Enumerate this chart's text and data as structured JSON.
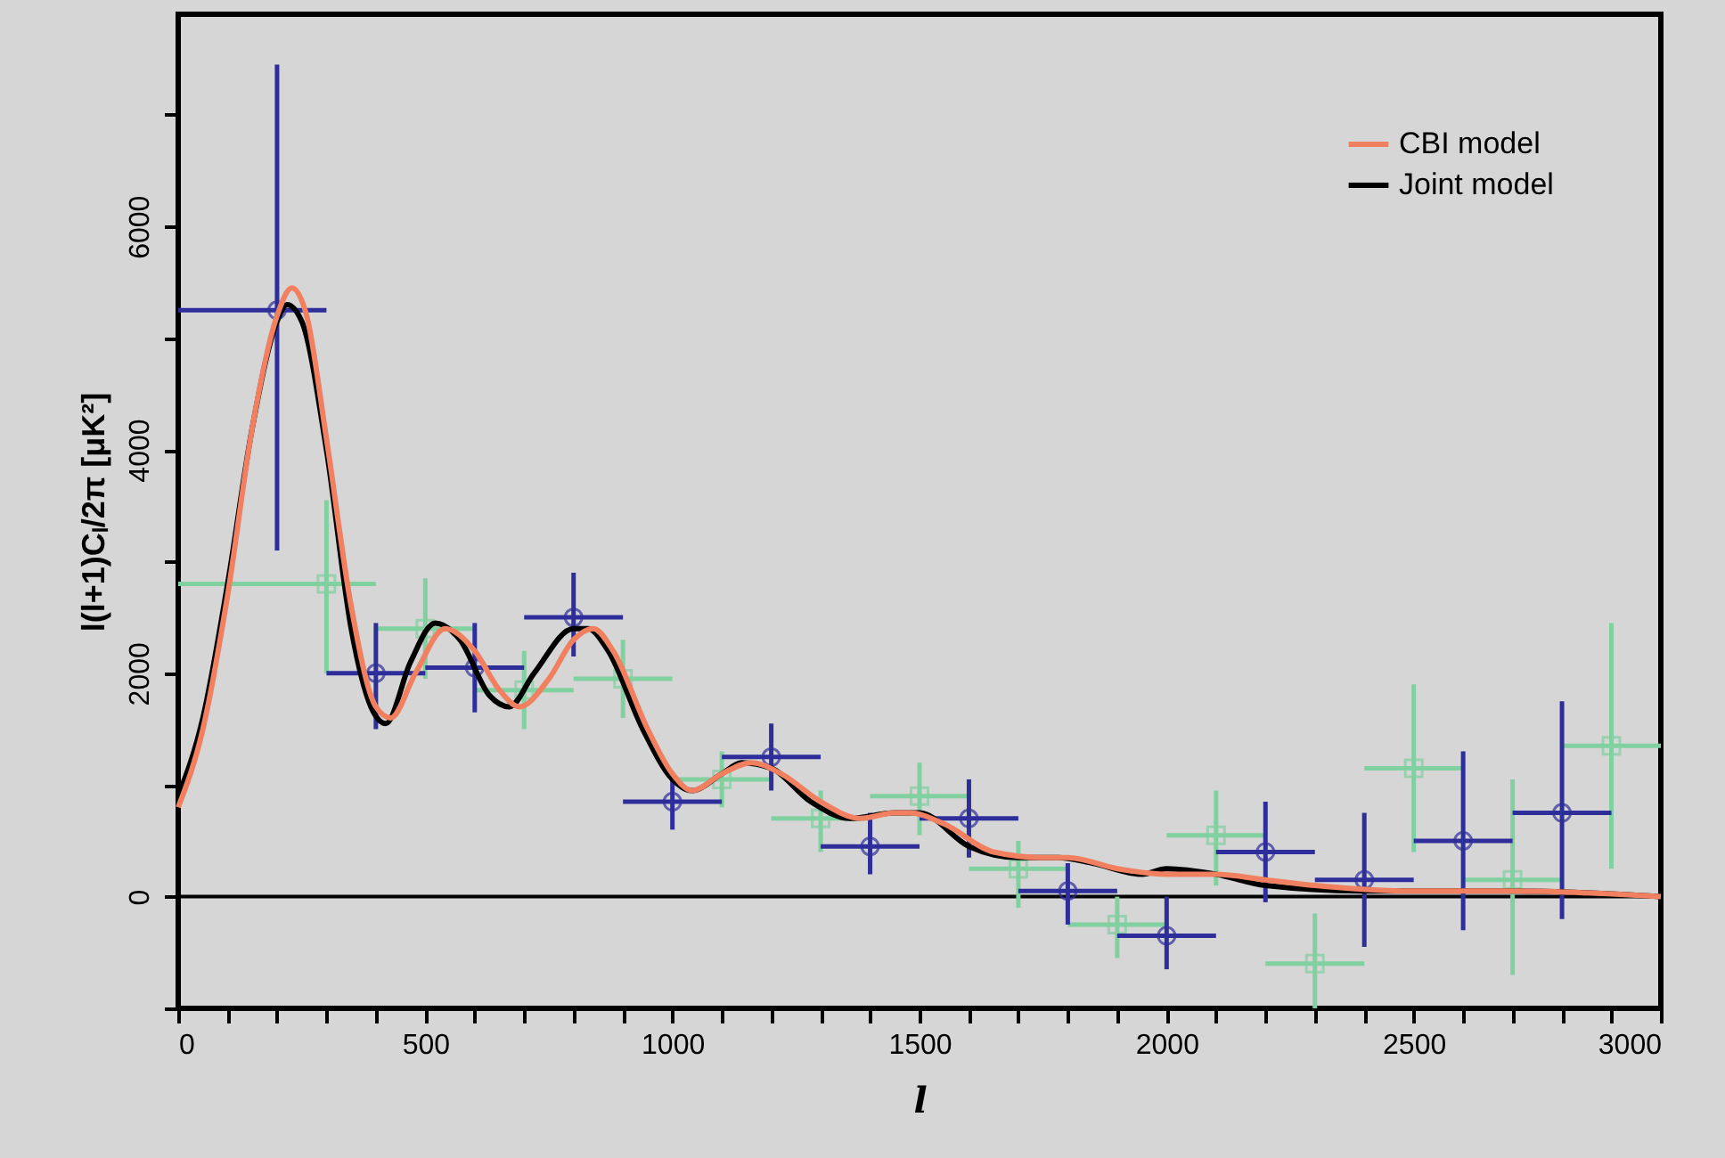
{
  "chart_data": {
    "type": "scatter",
    "xlabel": "l",
    "ylabel": "l(l+1)Cₗ/2π [μK²]",
    "xlim": [
      0,
      3000
    ],
    "ylim": [
      -1000,
      7900
    ],
    "xticks": [
      0,
      {
        "value": 100,
        "label": null
      },
      {
        "value": 200,
        "label": null
      },
      {
        "value": 300,
        "label": null
      },
      {
        "value": 400,
        "label": null
      },
      500,
      {
        "value": 600,
        "label": null
      },
      {
        "value": 700,
        "label": null
      },
      {
        "value": 800,
        "label": null
      },
      {
        "value": 900,
        "label": null
      },
      1000,
      {
        "value": 1100,
        "label": null
      },
      {
        "value": 1200,
        "label": null
      },
      {
        "value": 1300,
        "label": null
      },
      {
        "value": 1400,
        "label": null
      },
      1500,
      {
        "value": 1600,
        "label": null
      },
      {
        "value": 1700,
        "label": null
      },
      {
        "value": 1800,
        "label": null
      },
      {
        "value": 1900,
        "label": null
      },
      2000,
      {
        "value": 2100,
        "label": null
      },
      {
        "value": 2200,
        "label": null
      },
      {
        "value": 2300,
        "label": null
      },
      {
        "value": 2400,
        "label": null
      },
      2500,
      {
        "value": 2600,
        "label": null
      },
      {
        "value": 2700,
        "label": null
      },
      {
        "value": 2800,
        "label": null
      },
      {
        "value": 2900,
        "label": null
      },
      3000
    ],
    "yticks": [
      {
        "value": -1000,
        "label": null
      },
      0,
      {
        "value": 1000,
        "label": null
      },
      2000,
      {
        "value": 3000,
        "label": null
      },
      4000,
      {
        "value": 5000,
        "label": null
      },
      6000,
      {
        "value": 7000,
        "label": null
      }
    ],
    "grid": false,
    "legend": "top right",
    "ref_lines": [
      {
        "axis": "y",
        "value": 0,
        "color": "#000000"
      }
    ],
    "series": [
      {
        "color": "#80d0a0",
        "marker": "square",
        "x": [
          300,
          500,
          700,
          900,
          1100,
          1300,
          1500,
          1700,
          1900,
          2100,
          2300,
          2500,
          2700,
          2900
        ],
        "values": [
          2800,
          2400,
          1850,
          1950,
          1050,
          700,
          900,
          250,
          -250,
          550,
          -600,
          1150,
          150,
          1350
        ],
        "errors": [
          [
            2000,
            3550
          ],
          [
            1950,
            2850
          ],
          [
            1500,
            2200
          ],
          [
            1600,
            2300
          ],
          [
            800,
            1300
          ],
          [
            400,
            950
          ],
          [
            550,
            1200
          ],
          [
            -100,
            500
          ],
          [
            -550,
            0
          ],
          [
            100,
            950
          ],
          [
            -1000,
            -150
          ],
          [
            400,
            1900
          ],
          [
            -700,
            1050
          ],
          [
            250,
            2450
          ]
        ],
        "xerrors": [
          [
            0,
            400
          ],
          [
            400,
            600
          ],
          [
            600,
            800
          ],
          [
            800,
            1000
          ],
          [
            1000,
            1200
          ],
          [
            1200,
            1400
          ],
          [
            1400,
            1600
          ],
          [
            1600,
            1800
          ],
          [
            1800,
            2000
          ],
          [
            2000,
            2200
          ],
          [
            2200,
            2400
          ],
          [
            2400,
            2600
          ],
          [
            2600,
            2800
          ],
          [
            2800,
            3000
          ]
        ]
      },
      {
        "color": "#2e2e9a",
        "marker": "circle",
        "x": [
          200,
          400,
          600,
          800,
          1000,
          1200,
          1400,
          1600,
          1800,
          2000,
          2200,
          2400,
          2600,
          2800
        ],
        "values": [
          5250,
          2000,
          2050,
          2500,
          850,
          1250,
          450,
          700,
          50,
          -350,
          400,
          150,
          500,
          750
        ],
        "errors": [
          [
            3100,
            7450
          ],
          [
            1500,
            2450
          ],
          [
            1650,
            2450
          ],
          [
            2150,
            2900
          ],
          [
            600,
            1100
          ],
          [
            950,
            1550
          ],
          [
            200,
            750
          ],
          [
            350,
            1050
          ],
          [
            -250,
            300
          ],
          [
            -650,
            0
          ],
          [
            -50,
            850
          ],
          [
            -450,
            750
          ],
          [
            -300,
            1300
          ],
          [
            -200,
            1750
          ]
        ],
        "xerrors": [
          [
            0,
            300
          ],
          [
            300,
            500
          ],
          [
            500,
            700
          ],
          [
            700,
            900
          ],
          [
            900,
            1100
          ],
          [
            1100,
            1300
          ],
          [
            1300,
            1500
          ],
          [
            1500,
            1700
          ],
          [
            1700,
            1900
          ],
          [
            1900,
            2100
          ],
          [
            2100,
            2300
          ],
          [
            2300,
            2500
          ],
          [
            2500,
            2700
          ],
          [
            2700,
            2900
          ]
        ]
      },
      {
        "type": "line",
        "name": "CBI model",
        "color": "#f08060",
        "x": [
          0,
          50,
          100,
          150,
          200,
          230,
          260,
          300,
          350,
          400,
          430,
          480,
          540,
          600,
          650,
          690,
          750,
          800,
          840,
          880,
          950,
          1000,
          1040,
          1100,
          1160,
          1220,
          1300,
          1380,
          1450,
          1480,
          1550,
          1650,
          1750,
          1800,
          1900,
          2000,
          2100,
          2200,
          2300,
          2500,
          2700,
          3000
        ],
        "values": [
          800,
          1500,
          2700,
          4200,
          5200,
          5450,
          5200,
          4100,
          2600,
          1700,
          1600,
          2000,
          2400,
          2200,
          1850,
          1700,
          1950,
          2300,
          2400,
          2200,
          1500,
          1100,
          950,
          1100,
          1200,
          1100,
          850,
          700,
          750,
          750,
          650,
          400,
          350,
          350,
          250,
          200,
          200,
          150,
          100,
          50,
          50,
          0
        ]
      },
      {
        "type": "line",
        "name": "Joint model",
        "color": "#000000",
        "x": [
          0,
          50,
          100,
          150,
          200,
          220,
          250,
          300,
          350,
          390,
          420,
          470,
          520,
          570,
          630,
          670,
          720,
          800,
          830,
          870,
          940,
          1000,
          1040,
          1100,
          1140,
          1200,
          1280,
          1360,
          1450,
          1500,
          1600,
          1700,
          1780,
          1850,
          1950,
          2000,
          2100,
          2200,
          2400,
          2700,
          3000
        ],
        "values": [
          900,
          1600,
          2800,
          4200,
          5150,
          5300,
          5150,
          4000,
          2400,
          1700,
          1550,
          2100,
          2450,
          2300,
          1800,
          1700,
          2000,
          2400,
          2400,
          2200,
          1500,
          1050,
          950,
          1100,
          1200,
          1150,
          850,
          700,
          750,
          750,
          450,
          350,
          350,
          300,
          200,
          250,
          200,
          100,
          50,
          50,
          0
        ]
      }
    ]
  }
}
